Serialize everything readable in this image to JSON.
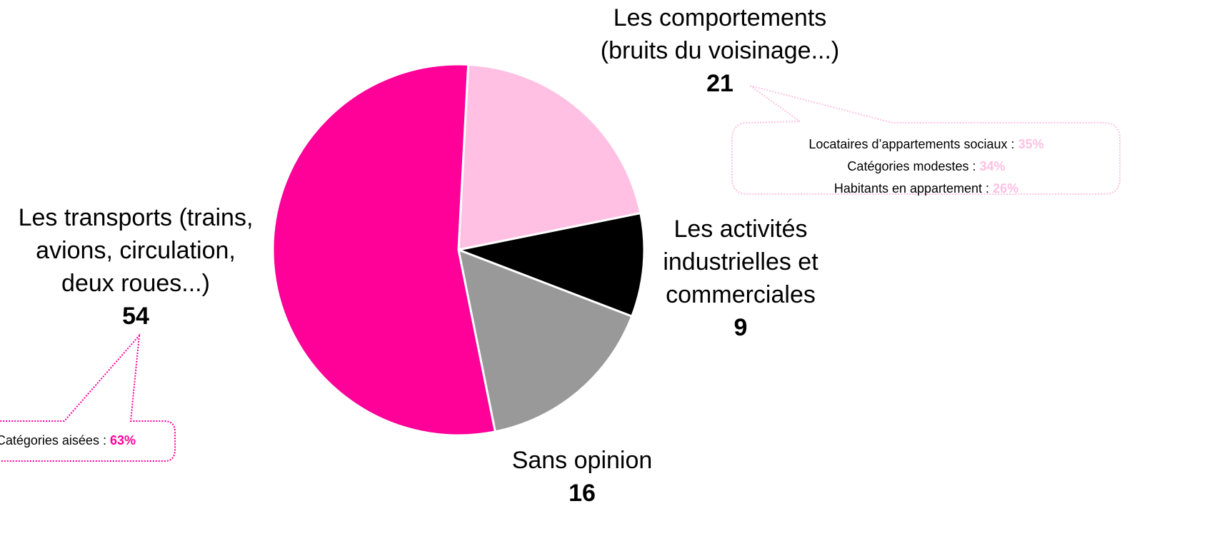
{
  "chart_data": {
    "type": "pie",
    "categories": [
      "Les comportements\n(bruits du voisinage...)",
      "Les activités\nindustrielles et\ncommerciales",
      "Sans opinion",
      "Les transports (trains,\navions, circulation,\ndeux roues...)"
    ],
    "values": [
      21,
      9,
      16,
      54
    ],
    "colors": [
      "#ffc0e3",
      "#000000",
      "#999999",
      "#ff0099"
    ],
    "annotations": [
      {
        "texts": [
          "Locataires d’appartements sociaux :",
          "Catégories modestes :",
          "Habitants en appartement :"
        ],
        "values": [
          35,
          34,
          26
        ],
        "value_labels": [
          "35%",
          "34%",
          "26%"
        ],
        "color": "#ffc0e3"
      },
      {
        "texts": [
          "Catégories aisées :"
        ],
        "values": [
          63
        ],
        "value_labels": [
          "63%"
        ],
        "color": "#ff0099"
      }
    ]
  }
}
